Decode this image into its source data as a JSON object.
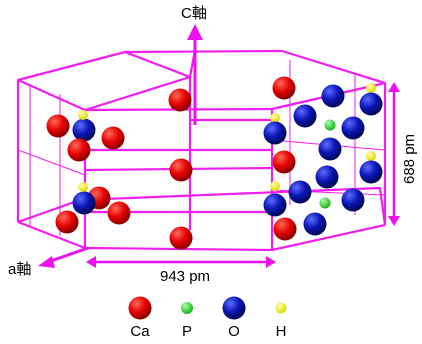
{
  "axes": {
    "c_axis_label": "C軸",
    "a_axis_label": "a軸"
  },
  "dimensions": {
    "width_label": "943 pm",
    "height_label": "688 pm"
  },
  "legend": [
    {
      "key": "ca",
      "label": "Ca"
    },
    {
      "key": "p",
      "label": "P"
    },
    {
      "key": "o",
      "label": "O"
    },
    {
      "key": "h",
      "label": "H"
    }
  ],
  "colors": {
    "frame": "#f01ef0",
    "arrow": "#ee11ee",
    "ca": "#e60000",
    "p": "#22dd22",
    "o": "#0a14b4",
    "h": "#f2ee1a"
  }
}
